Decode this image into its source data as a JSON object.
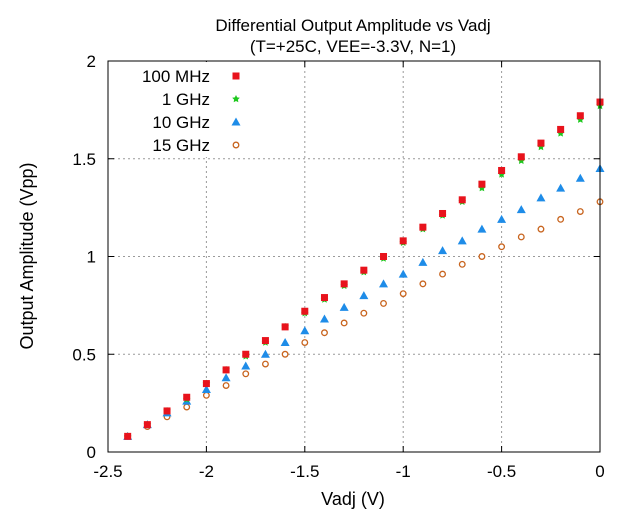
{
  "chart_data": {
    "type": "scatter",
    "title": "Differential Output Amplitude vs Vadj",
    "subtitle": "(T=+25C, VEE=-3.3V, N=1)",
    "xlabel": "Vadj (V)",
    "ylabel": "Output Amplitude (Vpp)",
    "xlim": [
      -2.5,
      0
    ],
    "ylim": [
      0,
      2
    ],
    "xticks": [
      -2.5,
      -2,
      -1.5,
      -1,
      -0.5,
      0
    ],
    "yticks": [
      0,
      0.5,
      1,
      1.5,
      2
    ],
    "xtick_labels": [
      "-2.5",
      "-2",
      "-1.5",
      "-1",
      "-0.5",
      "0"
    ],
    "ytick_labels": [
      "0",
      "0.5",
      "1",
      "1.5",
      "2"
    ],
    "grid": true,
    "legend_position": "top-left",
    "x": [
      -2.4,
      -2.3,
      -2.2,
      -2.1,
      -2.0,
      -1.9,
      -1.8,
      -1.7,
      -1.6,
      -1.5,
      -1.4,
      -1.3,
      -1.2,
      -1.1,
      -1.0,
      -0.9,
      -0.8,
      -0.7,
      -0.6,
      -0.5,
      -0.4,
      -0.3,
      -0.2,
      -0.1,
      0.0
    ],
    "series": [
      {
        "name": "100 MHz",
        "marker": "square",
        "color": "#e8131c",
        "values": [
          0.08,
          0.14,
          0.21,
          0.28,
          0.35,
          0.42,
          0.5,
          0.57,
          0.64,
          0.72,
          0.79,
          0.86,
          0.93,
          1.0,
          1.08,
          1.15,
          1.22,
          1.29,
          1.37,
          1.44,
          1.51,
          1.58,
          1.65,
          1.72,
          1.79
        ]
      },
      {
        "name": "1 GHz",
        "marker": "star",
        "color": "#1ec81e",
        "values": [
          0.08,
          0.14,
          0.21,
          0.27,
          0.35,
          0.42,
          0.49,
          0.56,
          0.64,
          0.71,
          0.78,
          0.85,
          0.92,
          0.99,
          1.07,
          1.14,
          1.21,
          1.28,
          1.35,
          1.42,
          1.49,
          1.56,
          1.63,
          1.7,
          1.77
        ]
      },
      {
        "name": "10 GHz",
        "marker": "triangle",
        "color": "#1e8ce8",
        "values": [
          0.08,
          0.14,
          0.2,
          0.26,
          0.32,
          0.38,
          0.44,
          0.5,
          0.56,
          0.62,
          0.68,
          0.74,
          0.8,
          0.86,
          0.91,
          0.97,
          1.03,
          1.08,
          1.14,
          1.19,
          1.24,
          1.3,
          1.35,
          1.4,
          1.45
        ]
      },
      {
        "name": "15 GHz",
        "marker": "circle-open",
        "color": "#c8641e",
        "values": [
          0.08,
          0.13,
          0.18,
          0.23,
          0.29,
          0.34,
          0.4,
          0.45,
          0.5,
          0.56,
          0.61,
          0.66,
          0.71,
          0.76,
          0.81,
          0.86,
          0.91,
          0.96,
          1.0,
          1.05,
          1.1,
          1.14,
          1.19,
          1.23,
          1.28
        ]
      }
    ]
  }
}
